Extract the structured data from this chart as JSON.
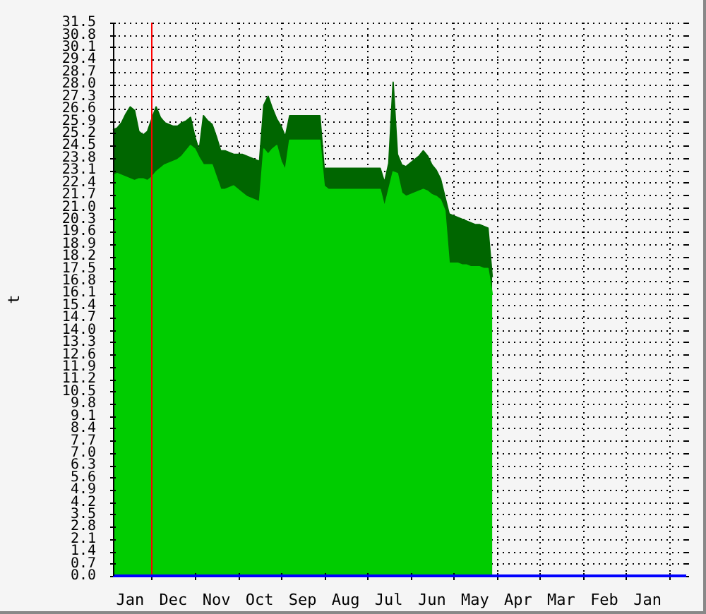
{
  "chart_data": {
    "type": "area",
    "ylabel": "t",
    "categories": [
      null,
      null,
      null,
      null,
      "Jan",
      null,
      null,
      null,
      null,
      null,
      null,
      null,
      null,
      null,
      "Dec",
      null,
      null,
      null,
      null,
      null,
      null,
      null,
      null,
      null,
      "Nov",
      null,
      null,
      null,
      null,
      null,
      null,
      null,
      null,
      null,
      "Oct",
      null,
      null,
      null,
      null,
      null,
      null,
      null,
      null,
      null,
      "Sep",
      null,
      null,
      null,
      null,
      null,
      null,
      null,
      null,
      null,
      "Aug",
      null,
      null,
      null,
      null,
      null,
      null,
      null,
      null,
      null,
      "Jul",
      null,
      null,
      null,
      null,
      null,
      null,
      null,
      null,
      null,
      "Jun",
      null,
      null,
      null,
      null,
      null,
      null,
      null,
      null,
      null,
      "May",
      null,
      null,
      null,
      null,
      null,
      null,
      null,
      null,
      null,
      "Apr",
      null,
      null,
      null,
      null,
      null,
      null,
      null,
      null,
      null,
      "Mar",
      null,
      null,
      null,
      null,
      null,
      null,
      null,
      null,
      null,
      "Feb",
      null,
      null,
      null,
      null,
      null,
      null,
      null,
      null,
      null,
      "Jan",
      null,
      null,
      null,
      null,
      null,
      null,
      null,
      null,
      null
    ],
    "series": [
      {
        "color": "#006600",
        "values": [
          25.4,
          25.5,
          25.8,
          26.3,
          26.7,
          26.5,
          25.3,
          25.1,
          25.3,
          26.0,
          26.7,
          26.1,
          25.8,
          25.7,
          25.6,
          25.6,
          25.8,
          25.9,
          26.1,
          25.0,
          24.2,
          26.2,
          25.9,
          25.7,
          25.0,
          24.2,
          24.2,
          24.1,
          24.0,
          24.0,
          24.0,
          23.9,
          23.8,
          23.7,
          23.6,
          26.8,
          27.3,
          26.6,
          26.0,
          25.6,
          25.0,
          26.2,
          26.2,
          26.2,
          26.2,
          26.2,
          26.2,
          26.2,
          26.2,
          23.2,
          23.2,
          23.2,
          23.2,
          23.2,
          23.2,
          23.2,
          23.2,
          23.2,
          23.2,
          23.2,
          23.2,
          23.2,
          23.2,
          22.4,
          23.5,
          28.1,
          24.0,
          23.4,
          23.3,
          23.5,
          23.7,
          23.9,
          24.2,
          23.9,
          23.4,
          23.1,
          22.6,
          21.6,
          20.6,
          20.5,
          20.4,
          20.3,
          20.2,
          20.1,
          20.0,
          20.0,
          19.9,
          19.8,
          17.0,
          null,
          null,
          null,
          null,
          null,
          null,
          null,
          null,
          null,
          null,
          null,
          null,
          null,
          null,
          null,
          null,
          null,
          null,
          null,
          null,
          null,
          null,
          null,
          null,
          null,
          null,
          null,
          null,
          null,
          null,
          null,
          null,
          null,
          null,
          null,
          null,
          null,
          null,
          null,
          null,
          null,
          null,
          null,
          null,
          null
        ]
      },
      {
        "color": "#00cc00",
        "values": [
          22.8,
          22.9,
          22.8,
          22.7,
          22.6,
          22.5,
          22.6,
          22.6,
          22.5,
          22.7,
          23.0,
          23.2,
          23.4,
          23.5,
          23.6,
          23.7,
          23.9,
          24.2,
          24.5,
          24.3,
          23.8,
          23.4,
          23.4,
          23.4,
          22.7,
          22.0,
          22.0,
          22.1,
          22.2,
          22.0,
          21.8,
          21.6,
          21.5,
          21.4,
          21.3,
          24.3,
          24.0,
          24.3,
          24.5,
          23.6,
          23.1,
          24.8,
          24.8,
          24.8,
          24.8,
          24.8,
          24.8,
          24.8,
          24.8,
          22.2,
          22.0,
          22.0,
          22.0,
          22.0,
          22.0,
          22.0,
          22.0,
          22.0,
          22.0,
          22.0,
          22.0,
          22.0,
          22.0,
          21.0,
          22.0,
          23.0,
          22.9,
          21.8,
          21.6,
          21.7,
          21.8,
          21.9,
          22.0,
          21.9,
          21.7,
          21.6,
          21.4,
          20.8,
          17.8,
          17.8,
          17.8,
          17.7,
          17.7,
          17.6,
          17.6,
          17.6,
          17.5,
          17.5,
          16.0,
          null,
          null,
          null,
          null,
          null,
          null,
          null,
          null,
          null,
          null,
          null,
          null,
          null,
          null,
          null,
          null,
          null,
          null,
          null,
          null,
          null,
          null,
          null,
          null,
          null,
          null,
          null,
          null,
          null,
          null,
          null,
          null,
          null,
          null,
          null,
          null,
          null,
          null,
          null,
          null,
          null,
          null,
          null,
          null,
          null
        ]
      }
    ],
    "ylim": [
      0,
      31.5
    ],
    "yticks": [
      {
        "value": 0,
        "label": "0.0"
      },
      0.7,
      1.4,
      2.1,
      2.8,
      3.5,
      4.2,
      4.9,
      5.6,
      6.3,
      {
        "value": 7,
        "label": "7.0"
      },
      7.7,
      8.4,
      9.1,
      9.8,
      10.5,
      11.2,
      11.9,
      12.6,
      13.3,
      {
        "value": 14,
        "label": "14.0"
      },
      14.7,
      15.4,
      16.1,
      16.8,
      17.5,
      18.2,
      18.9,
      19.6,
      20.3,
      {
        "value": 21,
        "label": "21.0"
      },
      21.7,
      22.4,
      23.1,
      23.8,
      24.5,
      25.2,
      25.9,
      26.6,
      27.3,
      {
        "value": 28,
        "label": "28.0"
      },
      28.7,
      29.4,
      30.1,
      30.8,
      31.5
    ],
    "grid": true
  }
}
